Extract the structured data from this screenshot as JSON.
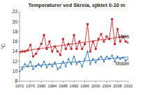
{
  "chart_data": {
    "type": "line",
    "title": "Temperaturer ved Skreia, sjiktet 0-10 m",
    "y_label": "°C",
    "x": [
      1972,
      1973,
      1974,
      1975,
      1976,
      1977,
      1978,
      1979,
      1980,
      1981,
      1982,
      1983,
      1984,
      1985,
      1986,
      1987,
      1988,
      1989,
      1990,
      1991,
      1992,
      1993,
      1994,
      1995,
      1996,
      1997,
      1998,
      1999,
      2000,
      2001,
      2002,
      2003,
      2004,
      2005,
      2006,
      2007,
      2008,
      2009,
      2010,
      2011,
      2012
    ],
    "series": [
      {
        "name": "Maks",
        "color": "#c8282d",
        "marker": "square",
        "values": [
          13.8,
          14,
          14,
          14.2,
          15.3,
          13,
          13.5,
          14.5,
          15.5,
          17.3,
          14.5,
          16,
          14,
          15,
          14,
          13.3,
          16.5,
          14.5,
          15.5,
          14.5,
          17.3,
          14.5,
          16,
          14.5,
          15.5,
          19.5,
          14,
          16,
          14.5,
          16.5,
          17.5,
          16,
          17,
          16.5,
          20.5,
          15.5,
          18.5,
          16,
          17,
          16,
          15.8
        ]
      },
      {
        "name": "Middel",
        "color": "#2e75b6",
        "marker": "triangle",
        "values": [
          10,
          10.5,
          11.5,
          11,
          12,
          10.5,
          11,
          11.5,
          11,
          12,
          10.8,
          11.5,
          11,
          11.8,
          10.5,
          10.8,
          12,
          11,
          12.5,
          11.5,
          13,
          11.5,
          12,
          11,
          12.5,
          14,
          11.5,
          12.5,
          11.8,
          12.5,
          13,
          12,
          13,
          12.5,
          13.2,
          12,
          13,
          12.5,
          12.8,
          12.2,
          12.5
        ]
      }
    ],
    "xlim": [
      1972,
      2012
    ],
    "xticks": [
      1972,
      1976,
      1980,
      1984,
      1988,
      1992,
      1996,
      2000,
      2004,
      2008,
      2012
    ],
    "ylim": [
      8,
      22
    ],
    "yticks": [
      8,
      10,
      12,
      14,
      16,
      18,
      20,
      22
    ],
    "grid": false,
    "legend": "right"
  }
}
